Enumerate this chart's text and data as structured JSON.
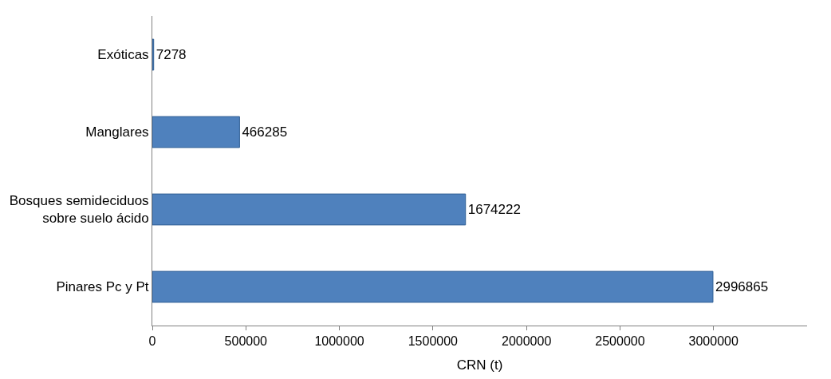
{
  "chart_data": {
    "type": "bar",
    "orientation": "horizontal",
    "xlabel": "CRN (t)",
    "categories": [
      "Exóticas",
      "Manglares",
      "Bosques semideciduos\nsobre suelo ácido",
      "Pinares Pc y Pt"
    ],
    "values": [
      7278,
      466285,
      1674222,
      2996865
    ],
    "color": "#4f81bd",
    "data_labels": true,
    "xlim": [
      0,
      3500000
    ],
    "xticks": [
      0,
      500000,
      1000000,
      1500000,
      2000000,
      2500000,
      3000000
    ]
  }
}
